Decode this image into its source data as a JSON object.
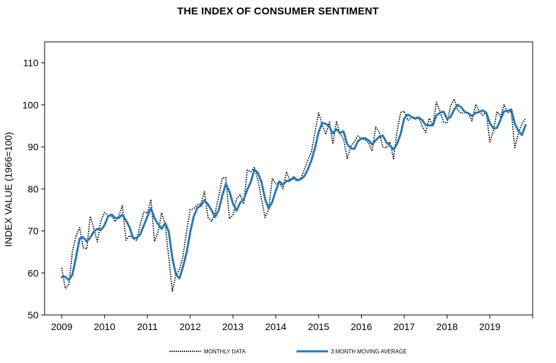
{
  "chart_data": {
    "type": "line",
    "title": "THE INDEX OF CONSUMER SENTIMENT",
    "xlabel": "",
    "ylabel": "INDEX VALUE (1966=100)",
    "ylim": [
      50,
      115
    ],
    "yticks": [
      50,
      60,
      70,
      80,
      90,
      100,
      110
    ],
    "xlim": [
      2008.6,
      2020.0
    ],
    "xticks": [
      "2009",
      "2010",
      "2011",
      "2012",
      "2013",
      "2014",
      "2015",
      "2016",
      "2017",
      "2018",
      "2019"
    ],
    "grid": false,
    "legend": "bottom",
    "series": [
      {
        "name": "MONTHLY DATA",
        "style": "dotted",
        "color": "#000000",
        "x": [
          2009.0,
          2009.083,
          2009.167,
          2009.25,
          2009.333,
          2009.417,
          2009.5,
          2009.583,
          2009.667,
          2009.75,
          2009.833,
          2009.917,
          2010.0,
          2010.083,
          2010.167,
          2010.25,
          2010.333,
          2010.417,
          2010.5,
          2010.583,
          2010.667,
          2010.75,
          2010.833,
          2010.917,
          2011.0,
          2011.083,
          2011.167,
          2011.25,
          2011.333,
          2011.417,
          2011.5,
          2011.583,
          2011.667,
          2011.75,
          2011.833,
          2011.917,
          2012.0,
          2012.083,
          2012.167,
          2012.25,
          2012.333,
          2012.417,
          2012.5,
          2012.583,
          2012.667,
          2012.75,
          2012.833,
          2012.917,
          2013.0,
          2013.083,
          2013.167,
          2013.25,
          2013.333,
          2013.417,
          2013.5,
          2013.583,
          2013.667,
          2013.75,
          2013.833,
          2013.917,
          2014.0,
          2014.083,
          2014.167,
          2014.25,
          2014.333,
          2014.417,
          2014.5,
          2014.583,
          2014.667,
          2014.75,
          2014.833,
          2014.917,
          2015.0,
          2015.083,
          2015.167,
          2015.25,
          2015.333,
          2015.417,
          2015.5,
          2015.583,
          2015.667,
          2015.75,
          2015.833,
          2015.917,
          2016.0,
          2016.083,
          2016.167,
          2016.25,
          2016.333,
          2016.417,
          2016.5,
          2016.583,
          2016.667,
          2016.75,
          2016.833,
          2016.917,
          2017.0,
          2017.083,
          2017.167,
          2017.25,
          2017.333,
          2017.417,
          2017.5,
          2017.583,
          2017.667,
          2017.75,
          2017.833,
          2017.917,
          2018.0,
          2018.083,
          2018.167,
          2018.25,
          2018.333,
          2018.417,
          2018.5,
          2018.583,
          2018.667,
          2018.75,
          2018.833,
          2018.917,
          2019.0,
          2019.083,
          2019.167,
          2019.25,
          2019.333,
          2019.417,
          2019.5,
          2019.583,
          2019.667,
          2019.75,
          2019.833
        ],
        "values": [
          61.2,
          56.3,
          57.3,
          65.1,
          68.7,
          70.8,
          66.0,
          65.7,
          73.5,
          70.6,
          67.4,
          72.5,
          74.4,
          73.6,
          73.6,
          72.2,
          73.6,
          76.0,
          67.8,
          68.9,
          68.2,
          67.7,
          71.6,
          74.5,
          74.2,
          77.5,
          67.5,
          69.8,
          74.3,
          71.5,
          63.7,
          55.7,
          59.5,
          60.8,
          64.1,
          69.9,
          75.0,
          75.3,
          76.2,
          76.4,
          79.3,
          73.2,
          72.3,
          74.3,
          78.3,
          82.6,
          82.7,
          72.9,
          73.8,
          77.6,
          78.6,
          76.4,
          84.5,
          84.1,
          85.1,
          82.1,
          77.5,
          73.2,
          75.1,
          82.5,
          81.2,
          81.6,
          80.0,
          84.1,
          81.9,
          82.5,
          81.8,
          82.5,
          84.6,
          86.9,
          88.8,
          93.6,
          98.1,
          95.4,
          93.0,
          95.9,
          90.7,
          96.1,
          93.1,
          91.9,
          87.2,
          90.0,
          91.3,
          92.6,
          92.0,
          91.7,
          91.0,
          89.0,
          94.7,
          93.5,
          90.0,
          89.8,
          91.2,
          87.2,
          93.8,
          98.2,
          98.5,
          96.3,
          96.9,
          97.0,
          97.1,
          95.0,
          93.4,
          96.8,
          95.1,
          100.7,
          98.5,
          95.9,
          95.7,
          99.7,
          101.4,
          98.8,
          98.0,
          98.2,
          97.9,
          96.2,
          100.1,
          98.6,
          97.5,
          98.3,
          91.2,
          93.8,
          98.4,
          97.2,
          100.0,
          98.2,
          98.4,
          89.8,
          93.2,
          95.5,
          96.8
        ]
      },
      {
        "name": "3 MONTH MOVING AVERAGE",
        "style": "solid",
        "color": "#2478b8",
        "x": [
          2009.0,
          2009.083,
          2009.167,
          2009.25,
          2009.333,
          2009.417,
          2009.5,
          2009.583,
          2009.667,
          2009.75,
          2009.833,
          2009.917,
          2010.0,
          2010.083,
          2010.167,
          2010.25,
          2010.333,
          2010.417,
          2010.5,
          2010.583,
          2010.667,
          2010.75,
          2010.833,
          2010.917,
          2011.0,
          2011.083,
          2011.167,
          2011.25,
          2011.333,
          2011.417,
          2011.5,
          2011.583,
          2011.667,
          2011.75,
          2011.833,
          2011.917,
          2012.0,
          2012.083,
          2012.167,
          2012.25,
          2012.333,
          2012.417,
          2012.5,
          2012.583,
          2012.667,
          2012.75,
          2012.833,
          2012.917,
          2013.0,
          2013.083,
          2013.167,
          2013.25,
          2013.333,
          2013.417,
          2013.5,
          2013.583,
          2013.667,
          2013.75,
          2013.833,
          2013.917,
          2014.0,
          2014.083,
          2014.167,
          2014.25,
          2014.333,
          2014.417,
          2014.5,
          2014.583,
          2014.667,
          2014.75,
          2014.833,
          2014.917,
          2015.0,
          2015.083,
          2015.167,
          2015.25,
          2015.333,
          2015.417,
          2015.5,
          2015.583,
          2015.667,
          2015.75,
          2015.833,
          2015.917,
          2016.0,
          2016.083,
          2016.167,
          2016.25,
          2016.333,
          2016.417,
          2016.5,
          2016.583,
          2016.667,
          2016.75,
          2016.833,
          2016.917,
          2017.0,
          2017.083,
          2017.167,
          2017.25,
          2017.333,
          2017.417,
          2017.5,
          2017.583,
          2017.667,
          2017.75,
          2017.833,
          2017.917,
          2018.0,
          2018.083,
          2018.167,
          2018.25,
          2018.333,
          2018.417,
          2018.5,
          2018.583,
          2018.667,
          2018.75,
          2018.833,
          2018.917,
          2019.0,
          2019.083,
          2019.167,
          2019.25,
          2019.333,
          2019.417,
          2019.5,
          2019.583,
          2019.667,
          2019.75,
          2019.833
        ],
        "values": [
          59.0,
          59.1,
          58.3,
          59.6,
          63.7,
          68.2,
          68.5,
          67.5,
          68.4,
          69.9,
          70.5,
          70.2,
          71.4,
          73.5,
          73.9,
          73.1,
          73.1,
          73.9,
          72.5,
          70.9,
          68.3,
          68.3,
          69.2,
          71.3,
          73.4,
          75.4,
          73.1,
          71.6,
          70.5,
          71.9,
          69.8,
          63.6,
          59.6,
          58.7,
          61.5,
          64.9,
          69.7,
          73.4,
          75.5,
          76.0,
          77.3,
          76.3,
          74.9,
          73.3,
          75.0,
          78.4,
          81.2,
          79.4,
          76.5,
          74.8,
          76.7,
          77.5,
          79.8,
          81.7,
          84.6,
          83.8,
          81.6,
          77.6,
          75.3,
          76.9,
          79.6,
          81.8,
          81.0,
          81.9,
          82.0,
          82.8,
          82.1,
          82.3,
          83.0,
          84.7,
          86.8,
          89.8,
          93.5,
          95.7,
          95.5,
          94.8,
          93.2,
          94.2,
          93.3,
          93.7,
          90.7,
          89.7,
          89.5,
          91.3,
          92.0,
          92.1,
          91.6,
          90.6,
          91.6,
          92.4,
          92.7,
          91.1,
          90.3,
          89.4,
          90.7,
          93.1,
          96.8,
          97.7,
          97.2,
          96.7,
          97.0,
          96.4,
          95.2,
          95.1,
          95.1,
          97.5,
          98.1,
          98.4,
          96.7,
          97.1,
          98.9,
          100.0,
          99.4,
          98.3,
          98.0,
          97.4,
          98.1,
          98.3,
          98.7,
          98.1,
          95.7,
          94.4,
          94.5,
          96.5,
          98.5,
          98.6,
          98.9,
          95.5,
          93.8,
          92.8,
          95.2
        ]
      }
    ]
  }
}
